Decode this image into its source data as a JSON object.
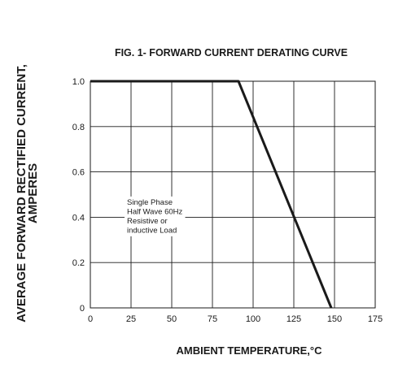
{
  "chart_data": {
    "type": "line",
    "title": "FIG. 1- FORWARD CURRENT DERATING CURVE",
    "xlabel": "AMBIENT TEMPERATURE,°C",
    "ylabel_lines": [
      "AVERAGE FORWARD RECTIFIED CURRENT,",
      "AMPERES"
    ],
    "xlim": [
      0,
      175
    ],
    "ylim": [
      0,
      1.0
    ],
    "x_ticks": [
      0,
      25,
      50,
      75,
      100,
      125,
      150,
      175
    ],
    "x_tick_labels": [
      "0",
      "25",
      "50",
      "75",
      "100",
      "125",
      "150",
      "175"
    ],
    "y_ticks": [
      0,
      0.2,
      0.4,
      0.6,
      0.8,
      1.0
    ],
    "y_tick_labels": [
      "0",
      "0.2",
      "0.4",
      "0.6",
      "0.8",
      "1.0"
    ],
    "grid": true,
    "series": [
      {
        "x": [
          0,
          91,
          148
        ],
        "y": [
          1.0,
          1.0,
          0
        ]
      }
    ],
    "annotation": {
      "lines": [
        "Single Phase",
        "Half Wave 60Hz",
        "Resistive or",
        "inductive Load"
      ],
      "x": 22,
      "y": 0.4
    }
  }
}
